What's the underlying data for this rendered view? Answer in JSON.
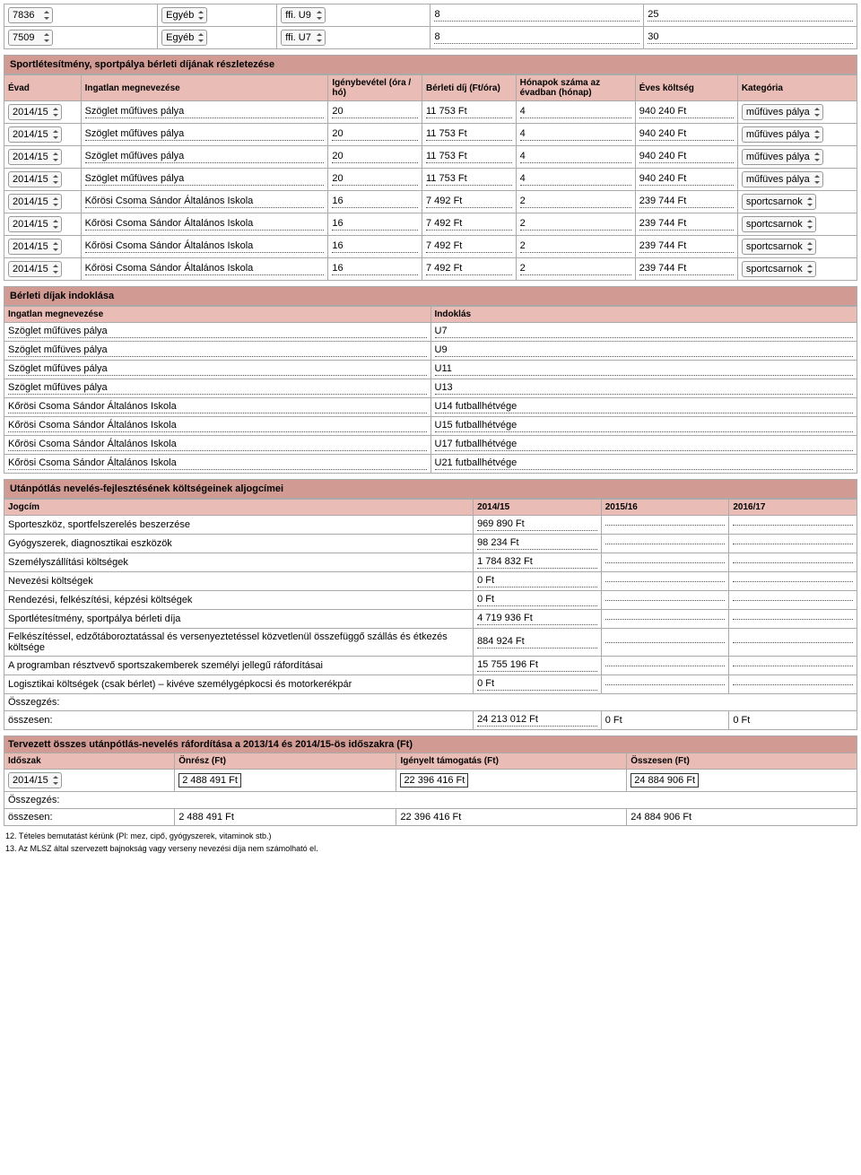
{
  "top_rows": [
    {
      "id": "7836",
      "type": "Egyéb",
      "cat": "ffi. U9",
      "v1": "8",
      "v2": "25"
    },
    {
      "id": "7509",
      "type": "Egyéb",
      "cat": "ffi. U7",
      "v1": "8",
      "v2": "30"
    }
  ],
  "rent": {
    "title": "Sportlétesítmény, sportpálya bérleti díjának részletezése",
    "headers": {
      "evad": "Évad",
      "ingatlan": "Ingatlan\nmegnevezése",
      "igeny": "Igénybevétel\n(óra / hó)",
      "berleti": "Bérleti díj\n(Ft/óra)",
      "honap": "Hónapok száma az\névadban (hónap)",
      "eves": "Éves költség",
      "kat": "Kategória"
    },
    "rows": [
      {
        "evad": "2014/15",
        "ing": "Szöglet műfüves pálya",
        "ora": "20",
        "dij": "11 753 Ft",
        "ho": "4",
        "koltseg": "940 240 Ft",
        "kat": "műfüves pálya"
      },
      {
        "evad": "2014/15",
        "ing": "Szöglet műfüves pálya",
        "ora": "20",
        "dij": "11 753 Ft",
        "ho": "4",
        "koltseg": "940 240 Ft",
        "kat": "műfüves pálya"
      },
      {
        "evad": "2014/15",
        "ing": "Szöglet műfüves pálya",
        "ora": "20",
        "dij": "11 753 Ft",
        "ho": "4",
        "koltseg": "940 240 Ft",
        "kat": "műfüves pálya"
      },
      {
        "evad": "2014/15",
        "ing": "Szöglet műfüves pálya",
        "ora": "20",
        "dij": "11 753 Ft",
        "ho": "4",
        "koltseg": "940 240 Ft",
        "kat": "műfüves pálya"
      },
      {
        "evad": "2014/15",
        "ing": "Kőrösi Csoma Sándor Általános Iskola",
        "ora": "16",
        "dij": "7 492 Ft",
        "ho": "2",
        "koltseg": "239 744 Ft",
        "kat": "sportcsarnok"
      },
      {
        "evad": "2014/15",
        "ing": "Kőrösi Csoma Sándor Általános Iskola",
        "ora": "16",
        "dij": "7 492 Ft",
        "ho": "2",
        "koltseg": "239 744 Ft",
        "kat": "sportcsarnok"
      },
      {
        "evad": "2014/15",
        "ing": "Kőrösi Csoma Sándor Általános Iskola",
        "ora": "16",
        "dij": "7 492 Ft",
        "ho": "2",
        "koltseg": "239 744 Ft",
        "kat": "sportcsarnok"
      },
      {
        "evad": "2014/15",
        "ing": "Kőrösi Csoma Sándor Általános Iskola",
        "ora": "16",
        "dij": "7 492 Ft",
        "ho": "2",
        "koltseg": "239 744 Ft",
        "kat": "sportcsarnok"
      }
    ]
  },
  "indoklas": {
    "title": "Bérleti díjak indoklása",
    "h1": "Ingatlan megnevezése",
    "h2": "Indoklás",
    "rows": [
      {
        "a": "Szöglet műfüves pálya",
        "b": "U7"
      },
      {
        "a": "Szöglet műfüves pálya",
        "b": "U9"
      },
      {
        "a": "Szöglet műfüves pálya",
        "b": "U11"
      },
      {
        "a": "Szöglet műfüves pálya",
        "b": "U13"
      },
      {
        "a": "Kőrösi Csoma Sándor Általános Iskola",
        "b": "U14 futballhétvége"
      },
      {
        "a": "Kőrösi Csoma Sándor Általános Iskola",
        "b": "U15 futballhétvége"
      },
      {
        "a": "Kőrösi Csoma Sándor Általános Iskola",
        "b": "U17 futballhétvége"
      },
      {
        "a": "Kőrösi Csoma Sándor Általános Iskola",
        "b": "U21 futballhétvége"
      }
    ]
  },
  "aljogcim": {
    "title": "Utánpótlás nevelés-fejlesztésének költségeinek aljogcímei",
    "headers": {
      "jog": "Jogcím",
      "y1": "2014/15",
      "y2": "2015/16",
      "y3": "2016/17"
    },
    "rows": [
      {
        "name": "Sporteszköz, sportfelszerelés beszerzése",
        "v": "969 890 Ft"
      },
      {
        "name": "Gyógyszerek, diagnosztikai eszközök",
        "v": "98 234 Ft"
      },
      {
        "name": "Személyszállítási költségek",
        "v": "1 784 832 Ft"
      },
      {
        "name": "Nevezési költségek",
        "v": "0 Ft"
      },
      {
        "name": "Rendezési, felkészítési, képzési költségek",
        "v": "0 Ft"
      },
      {
        "name": "Sportlétesítmény, sportpálya bérleti díja",
        "v": "4 719 936 Ft"
      },
      {
        "name": "Felkészítéssel, edzőtáboroztatással és versenyeztetéssel közvetlenül összefüggő szállás és étkezés költsége",
        "v": "884 924 Ft"
      },
      {
        "name": "A programban résztvevő sportszakemberek személyi jellegű ráfordításai",
        "v": "15 755 196 Ft"
      },
      {
        "name": "Logisztikai költségek (csak bérlet) – kivéve személygépkocsi és motorkerékpár",
        "v": "0 Ft"
      }
    ],
    "sum_label": "Összegzés:",
    "total_label": "összesen:",
    "total": {
      "v1": "24 213 012 Ft",
      "v2": "0 Ft",
      "v3": "0 Ft"
    }
  },
  "terv": {
    "title": "Tervezett összes utánpótlás-nevelés ráfordítása a 2013/14 és 2014/15-ös időszakra (Ft)",
    "headers": {
      "idoszak": "Időszak",
      "onresz": "Önrész (Ft)",
      "igeny": "Igényelt támogatás (Ft)",
      "ossz": "Összesen (Ft)"
    },
    "row": {
      "evad": "2014/15",
      "onresz": "2 488 491 Ft",
      "igeny": "22 396 416 Ft",
      "ossz": "24 884 906 Ft"
    },
    "sum_label": "Összegzés:",
    "total_label": "összesen:",
    "total": {
      "onresz": "2 488 491 Ft",
      "igeny": "22 396 416 Ft",
      "ossz": "24 884 906 Ft"
    }
  },
  "footnotes": {
    "f1": "12. Tételes bemutatást kérünk (Pl: mez, cipő, gyógyszerek, vitaminok stb.)",
    "f2": "13. Az MLSZ által szervezett bajnokság vagy verseny nevezési díja nem számolható el."
  }
}
